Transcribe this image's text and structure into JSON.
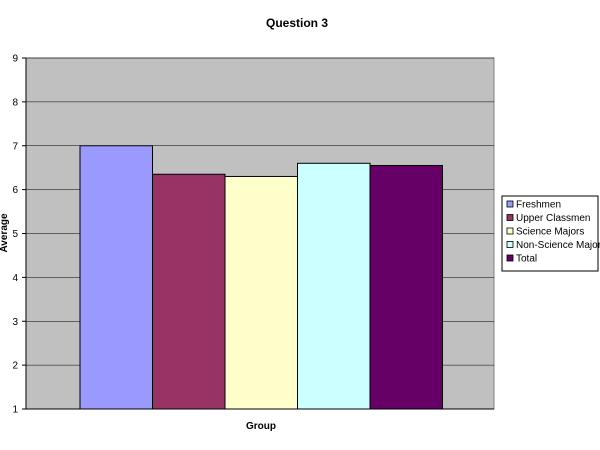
{
  "chart_data": {
    "type": "bar",
    "title": "Question 3",
    "xlabel": "Group",
    "ylabel": "Average",
    "ylim": [
      1,
      9
    ],
    "yticks": [
      1,
      2,
      3,
      4,
      5,
      6,
      7,
      8,
      9
    ],
    "grid": true,
    "legend_position": "right",
    "plot_background": "#c0c0c0",
    "series": [
      {
        "name": "Freshmen",
        "value": 7.0,
        "color": "#9999ff"
      },
      {
        "name": "Upper Classmen",
        "value": 6.35,
        "color": "#993366"
      },
      {
        "name": "Science Majors",
        "value": 6.3,
        "color": "#ffffcc"
      },
      {
        "name": "Non-Science Majors",
        "value": 6.6,
        "color": "#ccffff"
      },
      {
        "name": "Total",
        "value": 6.55,
        "color": "#660066"
      }
    ]
  }
}
